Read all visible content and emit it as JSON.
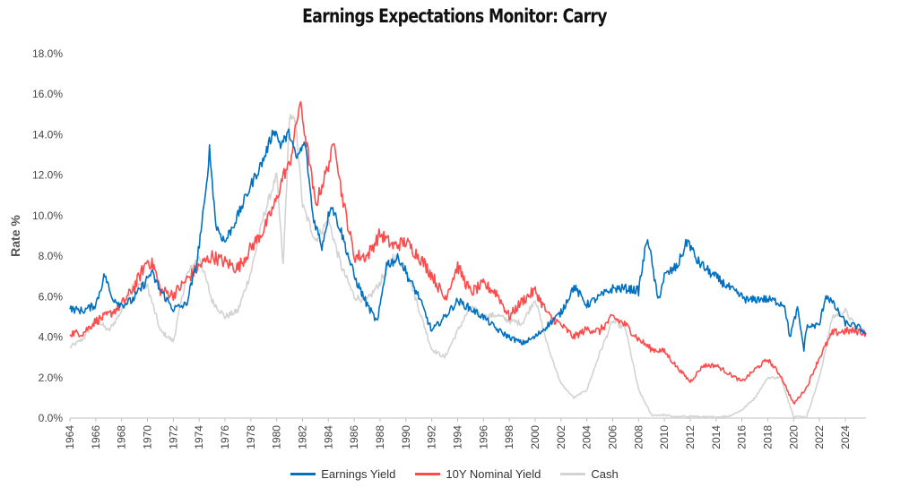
{
  "chart_data": {
    "type": "line",
    "title": "Earnings Expectations Monitor: Carry",
    "xlabel": "",
    "ylabel": "Rate %",
    "xlim": [
      1964,
      2025.6
    ],
    "ylim": [
      0,
      18
    ],
    "yticks": [
      0,
      2,
      4,
      6,
      8,
      10,
      12,
      14,
      16,
      18
    ],
    "ytick_labels": [
      "0.0%",
      "2.0%",
      "4.0%",
      "6.0%",
      "8.0%",
      "10.0%",
      "12.0%",
      "14.0%",
      "16.0%",
      "18.0%"
    ],
    "xtick_labels": [
      "1964",
      "1966",
      "1968",
      "1970",
      "1972",
      "1974",
      "1976",
      "1978",
      "1980",
      "1982",
      "1984",
      "1986",
      "1988",
      "1990",
      "1992",
      "1994",
      "1996",
      "1998",
      "2000",
      "2002",
      "2004",
      "2006",
      "2008",
      "2010",
      "2012",
      "2014",
      "2016",
      "2018",
      "2020",
      "2022",
      "2024"
    ],
    "legend_position": "bottom",
    "series": [
      {
        "name": "Earnings Yield",
        "color": "#0070C0",
        "points": [
          [
            1964,
            5.4
          ],
          [
            1965,
            5.3
          ],
          [
            1966,
            5.6
          ],
          [
            1966.7,
            7.1
          ],
          [
            1967.2,
            6.0
          ],
          [
            1968,
            5.6
          ],
          [
            1968.8,
            5.8
          ],
          [
            1969.5,
            6.4
          ],
          [
            1970.3,
            7.2
          ],
          [
            1971,
            6.3
          ],
          [
            1972,
            5.4
          ],
          [
            1973,
            5.6
          ],
          [
            1973.8,
            7.6
          ],
          [
            1974.5,
            11.0
          ],
          [
            1974.8,
            13.3
          ],
          [
            1975.3,
            9.5
          ],
          [
            1976,
            8.7
          ],
          [
            1977,
            10.0
          ],
          [
            1978,
            11.5
          ],
          [
            1979,
            12.8
          ],
          [
            1979.8,
            14.3
          ],
          [
            1980.3,
            13.5
          ],
          [
            1981,
            14.1
          ],
          [
            1981.5,
            12.8
          ],
          [
            1982.2,
            13.6
          ],
          [
            1982.8,
            10.0
          ],
          [
            1983.5,
            8.5
          ],
          [
            1984.2,
            10.6
          ],
          [
            1985,
            9.2
          ],
          [
            1986,
            7.0
          ],
          [
            1987,
            5.6
          ],
          [
            1987.8,
            4.7
          ],
          [
            1988.5,
            7.6
          ],
          [
            1989.5,
            7.9
          ],
          [
            1990.3,
            6.8
          ],
          [
            1991,
            6.0
          ],
          [
            1992,
            4.3
          ],
          [
            1993,
            5.0
          ],
          [
            1994,
            5.8
          ],
          [
            1995,
            5.4
          ],
          [
            1996,
            5.0
          ],
          [
            1997,
            4.4
          ],
          [
            1998,
            4.0
          ],
          [
            1999,
            3.7
          ],
          [
            2000,
            4.0
          ],
          [
            2001,
            4.6
          ],
          [
            2002,
            5.2
          ],
          [
            2003,
            6.5
          ],
          [
            2004,
            5.6
          ],
          [
            2005,
            6.0
          ],
          [
            2006,
            6.4
          ],
          [
            2007,
            6.4
          ],
          [
            2008,
            6.3
          ],
          [
            2008.7,
            9.0
          ],
          [
            2009,
            7.8
          ],
          [
            2009.5,
            5.8
          ],
          [
            2010,
            7.0
          ],
          [
            2011,
            7.5
          ],
          [
            2011.8,
            8.8
          ],
          [
            2012.5,
            7.8
          ],
          [
            2013.5,
            7.2
          ],
          [
            2014.5,
            6.7
          ],
          [
            2015.5,
            6.2
          ],
          [
            2016.5,
            5.8
          ],
          [
            2017.5,
            5.9
          ],
          [
            2018.5,
            5.8
          ],
          [
            2019.3,
            5.6
          ],
          [
            2019.7,
            4.0
          ],
          [
            2020.3,
            5.4
          ],
          [
            2020.8,
            3.4
          ],
          [
            2021,
            4.5
          ],
          [
            2022,
            4.6
          ],
          [
            2022.5,
            6.1
          ],
          [
            2023,
            5.7
          ],
          [
            2024,
            4.7
          ],
          [
            2025,
            4.5
          ],
          [
            2025.6,
            4.2
          ]
        ]
      },
      {
        "name": "10Y Nominal Yield",
        "color": "#FF4B4B",
        "points": [
          [
            1964,
            4.2
          ],
          [
            1965,
            4.2
          ],
          [
            1966,
            4.8
          ],
          [
            1967,
            5.1
          ],
          [
            1968,
            5.6
          ],
          [
            1969,
            6.5
          ],
          [
            1970,
            7.8
          ],
          [
            1970.5,
            7.5
          ],
          [
            1971,
            6.3
          ],
          [
            1972,
            6.1
          ],
          [
            1973,
            6.8
          ],
          [
            1974,
            7.5
          ],
          [
            1975,
            8.0
          ],
          [
            1976,
            7.7
          ],
          [
            1977,
            7.4
          ],
          [
            1978,
            8.4
          ],
          [
            1979,
            9.3
          ],
          [
            1980,
            10.8
          ],
          [
            1980.5,
            12.0
          ],
          [
            1981,
            12.5
          ],
          [
            1981.8,
            15.6
          ],
          [
            1982.5,
            12.8
          ],
          [
            1983,
            10.5
          ],
          [
            1984,
            12.5
          ],
          [
            1984.5,
            13.7
          ],
          [
            1985,
            11.2
          ],
          [
            1986,
            8.0
          ],
          [
            1987,
            8.0
          ],
          [
            1988,
            9.1
          ],
          [
            1989,
            8.5
          ],
          [
            1990,
            8.7
          ],
          [
            1991,
            8.0
          ],
          [
            1992,
            7.1
          ],
          [
            1993,
            5.9
          ],
          [
            1994,
            7.5
          ],
          [
            1995,
            6.2
          ],
          [
            1996,
            6.6
          ],
          [
            1997,
            6.2
          ],
          [
            1998,
            5.0
          ],
          [
            1999,
            5.8
          ],
          [
            2000,
            6.3
          ],
          [
            2001,
            5.1
          ],
          [
            2002,
            4.6
          ],
          [
            2003,
            4.0
          ],
          [
            2004,
            4.4
          ],
          [
            2005,
            4.3
          ],
          [
            2006,
            5.0
          ],
          [
            2007,
            4.6
          ],
          [
            2008,
            3.9
          ],
          [
            2009,
            3.4
          ],
          [
            2010,
            3.3
          ],
          [
            2011,
            2.5
          ],
          [
            2012,
            1.8
          ],
          [
            2013,
            2.6
          ],
          [
            2014,
            2.6
          ],
          [
            2015,
            2.2
          ],
          [
            2016,
            1.8
          ],
          [
            2017,
            2.4
          ],
          [
            2018,
            2.9
          ],
          [
            2019,
            2.1
          ],
          [
            2020,
            0.7
          ],
          [
            2021,
            1.5
          ],
          [
            2022,
            3.0
          ],
          [
            2023,
            4.2
          ],
          [
            2024,
            4.3
          ],
          [
            2025,
            4.3
          ],
          [
            2025.6,
            4.2
          ]
        ]
      },
      {
        "name": "Cash",
        "color": "#D3D3D3",
        "points": [
          [
            1964,
            3.5
          ],
          [
            1965,
            3.9
          ],
          [
            1966,
            4.9
          ],
          [
            1967,
            4.3
          ],
          [
            1968,
            5.3
          ],
          [
            1969,
            6.7
          ],
          [
            1970,
            6.5
          ],
          [
            1971,
            4.3
          ],
          [
            1972,
            3.8
          ],
          [
            1973,
            7.0
          ],
          [
            1974,
            8.0
          ],
          [
            1975,
            5.8
          ],
          [
            1976,
            5.0
          ],
          [
            1977,
            5.3
          ],
          [
            1978,
            7.2
          ],
          [
            1979,
            10.0
          ],
          [
            1980,
            12.0
          ],
          [
            1980.5,
            7.5
          ],
          [
            1981,
            15.0
          ],
          [
            1981.5,
            14.5
          ],
          [
            1982,
            10.5
          ],
          [
            1983,
            8.8
          ],
          [
            1984,
            9.8
          ],
          [
            1985,
            7.5
          ],
          [
            1986,
            6.0
          ],
          [
            1987,
            5.8
          ],
          [
            1988,
            6.7
          ],
          [
            1989,
            8.0
          ],
          [
            1990,
            7.5
          ],
          [
            1991,
            5.4
          ],
          [
            1992,
            3.4
          ],
          [
            1993,
            3.0
          ],
          [
            1994,
            4.3
          ],
          [
            1995,
            5.5
          ],
          [
            1996,
            5.0
          ],
          [
            1997,
            5.1
          ],
          [
            1998,
            4.8
          ],
          [
            1999,
            4.7
          ],
          [
            2000,
            5.9
          ],
          [
            2001,
            3.5
          ],
          [
            2002,
            1.7
          ],
          [
            2003,
            1.0
          ],
          [
            2004,
            1.4
          ],
          [
            2005,
            3.2
          ],
          [
            2006,
            4.8
          ],
          [
            2007,
            4.4
          ],
          [
            2008,
            1.4
          ],
          [
            2009,
            0.15
          ],
          [
            2010,
            0.15
          ],
          [
            2011,
            0.05
          ],
          [
            2012,
            0.1
          ],
          [
            2013,
            0.05
          ],
          [
            2014,
            0.05
          ],
          [
            2015,
            0.1
          ],
          [
            2016,
            0.4
          ],
          [
            2017,
            1.0
          ],
          [
            2018,
            2.0
          ],
          [
            2019,
            2.0
          ],
          [
            2020,
            0.1
          ],
          [
            2021,
            0.05
          ],
          [
            2022,
            2.0
          ],
          [
            2023,
            5.0
          ],
          [
            2024,
            5.3
          ],
          [
            2025,
            4.3
          ],
          [
            2025.6,
            4.3
          ]
        ]
      }
    ]
  }
}
